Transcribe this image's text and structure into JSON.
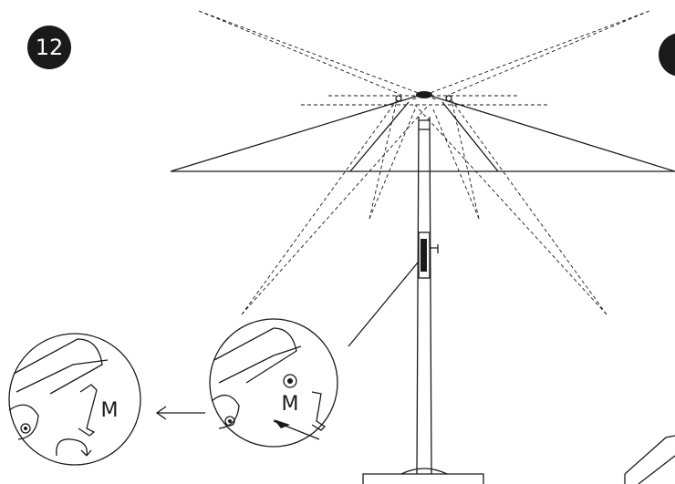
{
  "step": {
    "number": "12"
  },
  "detail_right": {
    "label": "M"
  },
  "detail_left": {
    "label": "M"
  }
}
